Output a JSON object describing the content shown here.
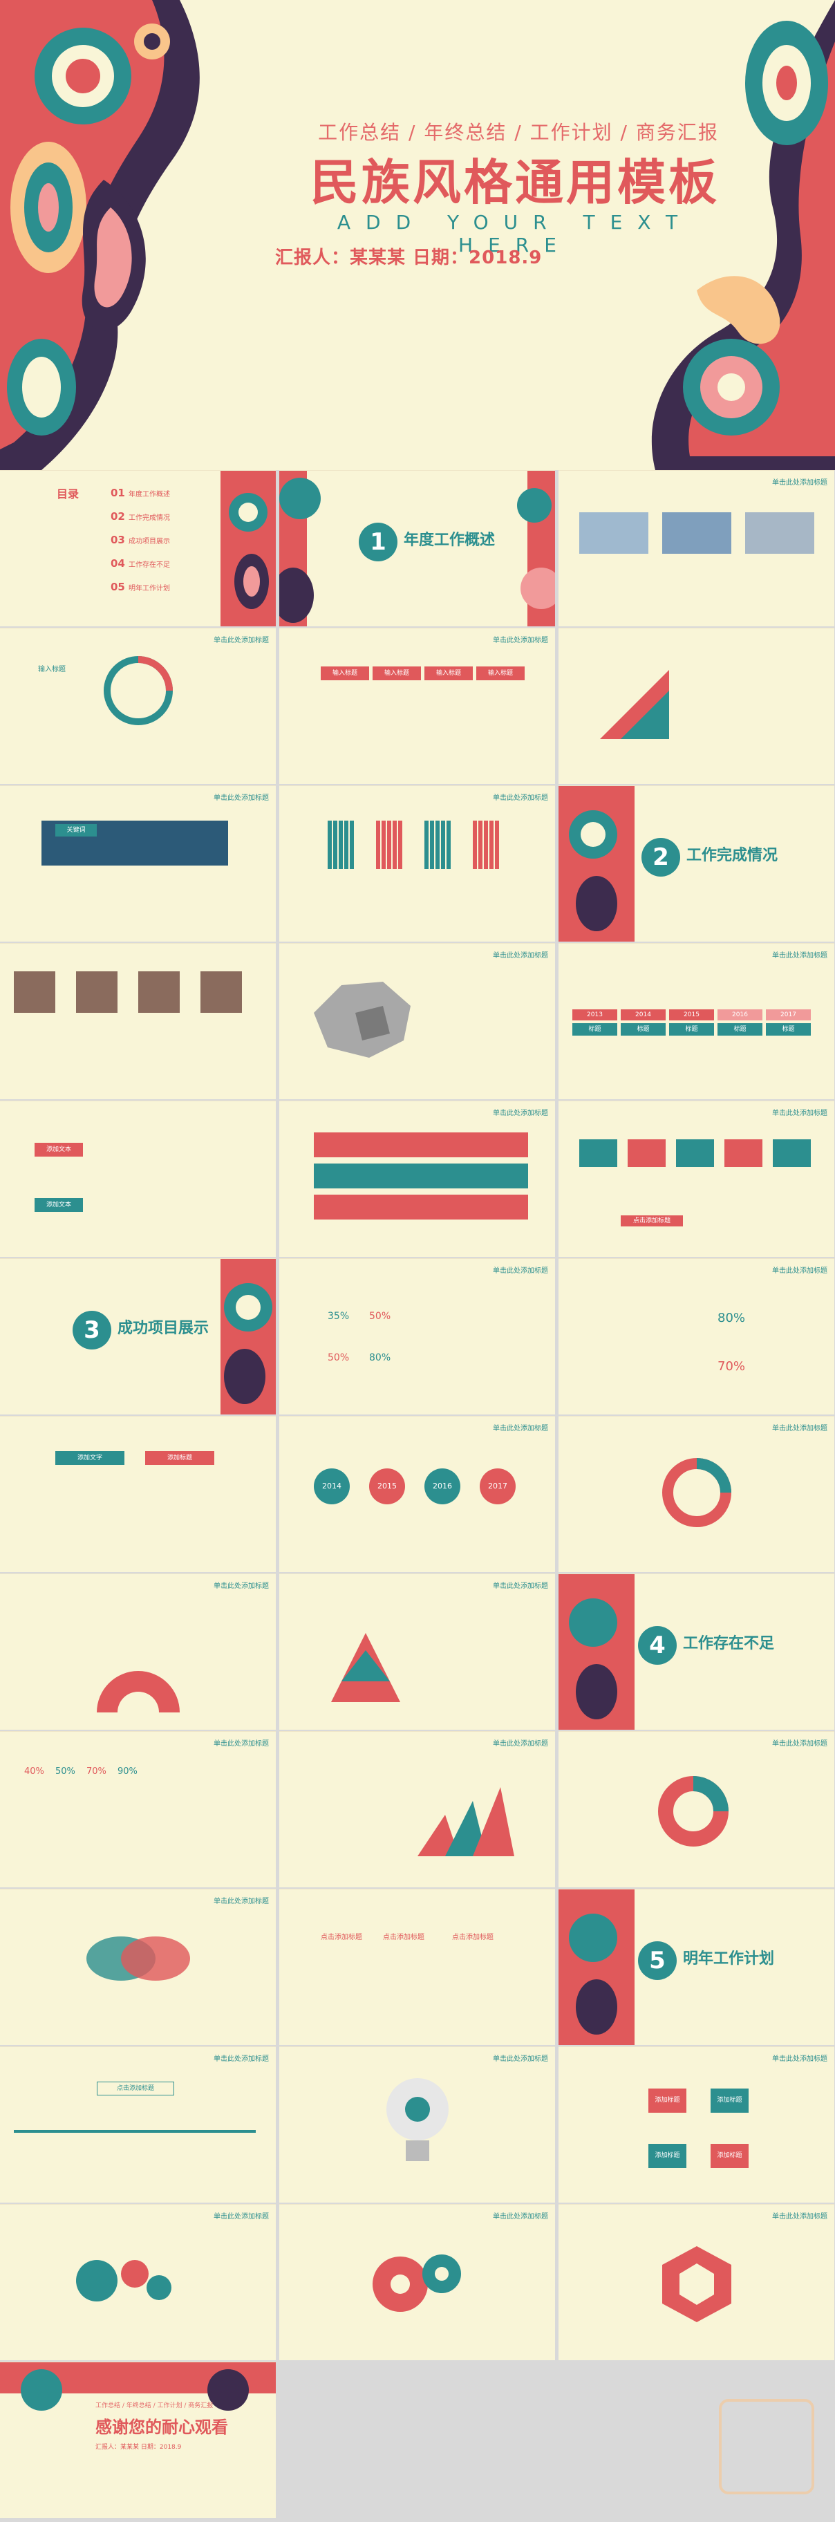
{
  "colors": {
    "teal": "#2c8f8f",
    "red": "#e0595b",
    "cream": "#f9f5d7",
    "pink": "#f19a9a",
    "dark": "#3d2c4e"
  },
  "cover": {
    "subtitle": "工作总结 / 年终总结 / 工作计划 / 商务汇报",
    "title": "民族风格通用模板",
    "english": "ADD YOUR TEXT HERE",
    "reporter": "汇报人：某某某     日期：2018.9"
  },
  "common": {
    "header": "单击此处添加标题"
  },
  "toc": {
    "title": "目录",
    "items": [
      {
        "num": "01",
        "label": "年度工作概述"
      },
      {
        "num": "02",
        "label": "工作完成情况"
      },
      {
        "num": "03",
        "label": "成功项目展示"
      },
      {
        "num": "04",
        "label": "工作存在不足"
      },
      {
        "num": "05",
        "label": "明年工作计划"
      }
    ]
  },
  "sections": [
    {
      "num": "1",
      "title": "年度工作概述"
    },
    {
      "num": "2",
      "title": "工作完成情况"
    },
    {
      "num": "3",
      "title": "成功项目展示"
    },
    {
      "num": "4",
      "title": "工作存在不足"
    },
    {
      "num": "5",
      "title": "明年工作计划"
    }
  ],
  "labels": {
    "add_text": "添加文本",
    "add_word": "添加文字",
    "add_title": "添加标题",
    "click_title": "点击添加标题",
    "input_title": "输入标题",
    "keyword": "关键词",
    "years": [
      "2014",
      "2015",
      "2016",
      "2017"
    ],
    "pct_ring": [
      "35%",
      "50%",
      "50%",
      "80%"
    ],
    "people_pct": [
      "80%",
      "70%"
    ],
    "tubes": [
      "40%",
      "50%",
      "70%",
      "90%"
    ],
    "year_arrows": [
      "2013",
      "2014",
      "2015",
      "2016",
      "2017"
    ],
    "tags": [
      "标题",
      "标题",
      "标题",
      "标题",
      "标题"
    ]
  },
  "thanks": {
    "sub": "工作总结 / 年终总结 / 工作计划 / 商务汇报",
    "title": "感谢您的耐心观看",
    "reporter": "汇报人：某某某  日期：2018.9"
  }
}
